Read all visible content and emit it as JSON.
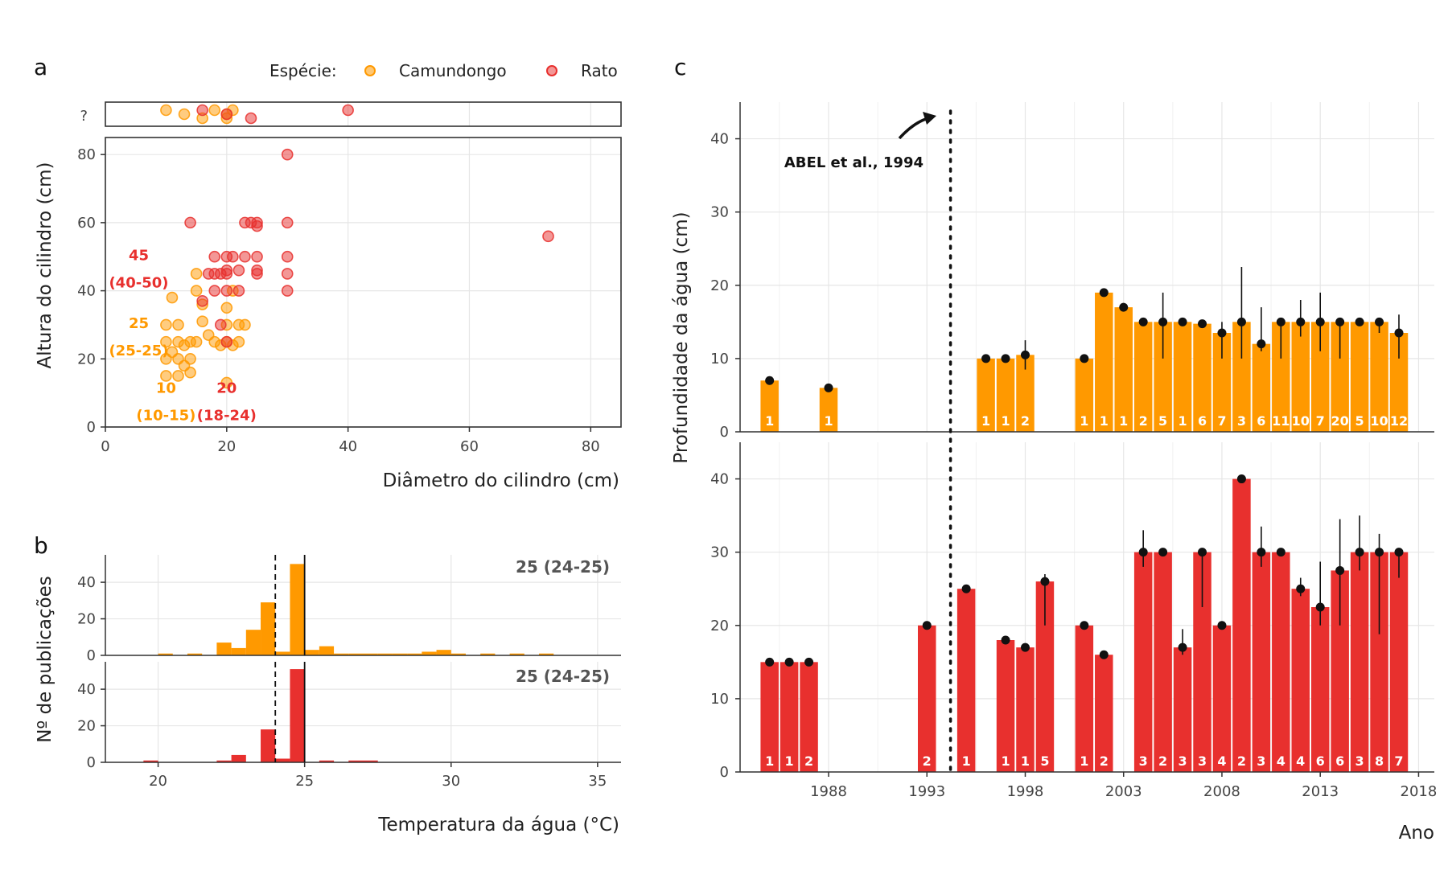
{
  "colors": {
    "camundongo": "#FF9900",
    "rato": "#E8302E",
    "point_black": "#111111"
  },
  "legend": {
    "title": "Espécie:",
    "items": [
      "Camundongo",
      "Rato"
    ]
  },
  "panels": {
    "a": {
      "letter": "a",
      "top_tick": "?",
      "xlabel": "Diâmetro do cilindro (cm)",
      "ylabel": "Altura do cilindro (cm)"
    },
    "b": {
      "letter": "b",
      "xlabel": "Temperatura da água (°C)",
      "ylabel": "Nº de publicações",
      "annotation_top": "25 (24-25)",
      "annotation_bottom": "25 (24-25)"
    },
    "c": {
      "letter": "c",
      "ylabel": "Profundidade da água (cm)",
      "xlabel": "Ano",
      "ref_label": "ABEL et al., 1994"
    }
  },
  "chart_data": [
    {
      "type": "scatter",
      "panel": "a",
      "xlabel": "Diâmetro do cilindro (cm)",
      "ylabel": "Altura do cilindro (cm)",
      "xlim": [
        0,
        85
      ],
      "ylim": [
        0,
        85
      ],
      "xticks": [
        0,
        20,
        40,
        60,
        80
      ],
      "yticks": [
        0,
        20,
        40,
        60,
        80
      ],
      "top_strip_label": "?",
      "series": [
        {
          "name": "Camundongo",
          "points": [
            [
              10,
              30
            ],
            [
              10,
              25
            ],
            [
              10,
              20
            ],
            [
              10,
              15
            ],
            [
              11,
              22
            ],
            [
              11,
              38
            ],
            [
              12,
              30
            ],
            [
              12,
              25
            ],
            [
              12,
              20
            ],
            [
              12,
              15
            ],
            [
              13,
              24
            ],
            [
              13,
              18
            ],
            [
              14,
              25
            ],
            [
              14,
              20
            ],
            [
              14,
              16
            ],
            [
              15,
              45
            ],
            [
              15,
              40
            ],
            [
              15,
              25
            ],
            [
              16,
              36
            ],
            [
              16,
              31
            ],
            [
              17,
              27
            ],
            [
              18,
              25
            ],
            [
              19,
              24
            ],
            [
              20,
              35
            ],
            [
              20,
              30
            ],
            [
              20,
              25
            ],
            [
              20,
              13
            ],
            [
              21,
              40
            ],
            [
              21,
              24
            ],
            [
              22,
              30
            ],
            [
              22,
              25
            ],
            [
              23,
              30
            ]
          ],
          "unknown_height_x": [
            10,
            13,
            16,
            18,
            20,
            20,
            21
          ]
        },
        {
          "name": "Rato",
          "points": [
            [
              14,
              60
            ],
            [
              16,
              37
            ],
            [
              17,
              45
            ],
            [
              18,
              50
            ],
            [
              18,
              45
            ],
            [
              18,
              40
            ],
            [
              19,
              30
            ],
            [
              19,
              45
            ],
            [
              20,
              50
            ],
            [
              20,
              46
            ],
            [
              20,
              45
            ],
            [
              20,
              40
            ],
            [
              20,
              25
            ],
            [
              21,
              50
            ],
            [
              22,
              46
            ],
            [
              22,
              40
            ],
            [
              23,
              60
            ],
            [
              23,
              50
            ],
            [
              24,
              60
            ],
            [
              25,
              60
            ],
            [
              25,
              59
            ],
            [
              25,
              50
            ],
            [
              25,
              46
            ],
            [
              25,
              45
            ],
            [
              30,
              80
            ],
            [
              30,
              60
            ],
            [
              30,
              50
            ],
            [
              30,
              45
            ],
            [
              30,
              40
            ],
            [
              73,
              56
            ]
          ],
          "unknown_height_x": [
            16,
            20,
            24,
            40
          ]
        }
      ],
      "annotations": [
        {
          "text": "45",
          "x": 5.5,
          "y": 49,
          "color": "rato"
        },
        {
          "text": "(40-50)",
          "x": 5.5,
          "y": 41,
          "color": "rato"
        },
        {
          "text": "25",
          "x": 5.5,
          "y": 29,
          "color": "camundongo"
        },
        {
          "text": "(25-25)",
          "x": 5.5,
          "y": 21,
          "color": "camundongo"
        },
        {
          "text": "10",
          "x": 10,
          "y": 10,
          "color": "camundongo"
        },
        {
          "text": "(10-15)",
          "x": 10,
          "y": 2,
          "color": "camundongo"
        },
        {
          "text": "20",
          "x": 20,
          "y": 10,
          "color": "rato"
        },
        {
          "text": "(18-24)",
          "x": 20,
          "y": 2,
          "color": "rato"
        }
      ]
    },
    {
      "type": "bar",
      "panel": "b",
      "xlabel": "Temperatura da água (°C)",
      "ylabel": "Nº de publicações",
      "xlim": [
        18.2,
        35.8
      ],
      "ylim": [
        0,
        55
      ],
      "xticks": [
        20,
        25,
        30,
        35
      ],
      "yticks": [
        0,
        20,
        40
      ],
      "bin_width": 0.5,
      "median": 25,
      "q1": 24,
      "series": [
        {
          "name": "Camundongo",
          "bins": [
            [
              20,
              1
            ],
            [
              21,
              1
            ],
            [
              22,
              7
            ],
            [
              22.5,
              4
            ],
            [
              23,
              14
            ],
            [
              23.5,
              29
            ],
            [
              24,
              2
            ],
            [
              24.5,
              50
            ],
            [
              25,
              3
            ],
            [
              25.5,
              5
            ],
            [
              26,
              1
            ],
            [
              26.5,
              1
            ],
            [
              27,
              1
            ],
            [
              27.5,
              1
            ],
            [
              28,
              1
            ],
            [
              28.5,
              1
            ],
            [
              29,
              2
            ],
            [
              29.5,
              3
            ],
            [
              30,
              1
            ],
            [
              31,
              1
            ],
            [
              32,
              1
            ],
            [
              33,
              1
            ]
          ]
        },
        {
          "name": "Rato",
          "bins": [
            [
              19.5,
              1
            ],
            [
              22,
              1
            ],
            [
              22.5,
              4
            ],
            [
              23.5,
              18
            ],
            [
              24,
              2
            ],
            [
              24.5,
              51
            ],
            [
              25.5,
              1
            ],
            [
              26.5,
              1
            ],
            [
              27,
              1
            ]
          ]
        }
      ]
    },
    {
      "type": "bar",
      "panel": "c",
      "xlabel": "Ano",
      "ylabel": "Profundidade da água (cm)",
      "xlim": [
        1983.5,
        2018.8
      ],
      "ylim": [
        0,
        45
      ],
      "xticks": [
        1988,
        1993,
        1998,
        2003,
        2008,
        2013,
        2018
      ],
      "yticks": [
        0,
        10,
        20,
        30,
        40
      ],
      "reference_year": 1994.2,
      "reference_label": "ABEL et al., 1994",
      "series": [
        {
          "name": "Camundongo",
          "bars": [
            {
              "year": 1985,
              "value": 7,
              "n": "1"
            },
            {
              "year": 1988,
              "value": 6,
              "n": "1"
            },
            {
              "year": 1996,
              "value": 10,
              "n": "1"
            },
            {
              "year": 1997,
              "value": 10,
              "n": "1"
            },
            {
              "year": 1998,
              "value": 10.5,
              "n": "2",
              "lo": 8.5,
              "hi": 12.5
            },
            {
              "year": 2001,
              "value": 10,
              "n": "1"
            },
            {
              "year": 2002,
              "value": 19,
              "n": "1"
            },
            {
              "year": 2003,
              "value": 17,
              "n": "1"
            },
            {
              "year": 2004,
              "value": 15,
              "n": "2"
            },
            {
              "year": 2005,
              "value": 15,
              "n": "5",
              "lo": 10,
              "hi": 19
            },
            {
              "year": 2006,
              "value": 15,
              "n": "1"
            },
            {
              "year": 2007,
              "value": 14.75,
              "n": "6",
              "lo": 14.5,
              "hi": 15
            },
            {
              "year": 2008,
              "value": 13.5,
              "n": "7",
              "lo": 10,
              "hi": 15
            },
            {
              "year": 2009,
              "value": 15,
              "n": "3",
              "lo": 10,
              "hi": 22.5
            },
            {
              "year": 2010,
              "value": 12,
              "n": "6",
              "lo": 11,
              "hi": 17
            },
            {
              "year": 2011,
              "value": 15,
              "n": "11",
              "lo": 10,
              "hi": 15
            },
            {
              "year": 2012,
              "value": 15,
              "n": "10",
              "lo": 13,
              "hi": 18
            },
            {
              "year": 2013,
              "value": 15,
              "n": "7",
              "lo": 11,
              "hi": 19
            },
            {
              "year": 2014,
              "value": 15,
              "n": "20",
              "lo": 10,
              "hi": 15
            },
            {
              "year": 2015,
              "value": 15,
              "n": "5"
            },
            {
              "year": 2016,
              "value": 15,
              "n": "10",
              "lo": 13.5,
              "hi": 15
            },
            {
              "year": 2017,
              "value": 13.5,
              "n": "12",
              "lo": 10,
              "hi": 16
            }
          ]
        },
        {
          "name": "Rato",
          "bars": [
            {
              "year": 1985,
              "value": 15,
              "n": "1"
            },
            {
              "year": 1986,
              "value": 15,
              "n": "1"
            },
            {
              "year": 1987,
              "value": 15,
              "n": "2"
            },
            {
              "year": 1993,
              "value": 20,
              "n": "2",
              "lo": 19.5,
              "hi": 20.5
            },
            {
              "year": 1995,
              "value": 25,
              "n": "1"
            },
            {
              "year": 1997,
              "value": 18,
              "n": "1"
            },
            {
              "year": 1998,
              "value": 17,
              "n": "1"
            },
            {
              "year": 1999,
              "value": 26,
              "n": "5",
              "lo": 20,
              "hi": 27
            },
            {
              "year": 2001,
              "value": 20,
              "n": "1"
            },
            {
              "year": 2002,
              "value": 16,
              "n": "2"
            },
            {
              "year": 2004,
              "value": 30,
              "n": "3",
              "lo": 28,
              "hi": 33
            },
            {
              "year": 2005,
              "value": 30,
              "n": "2"
            },
            {
              "year": 2006,
              "value": 17,
              "n": "3",
              "lo": 16,
              "hi": 19.5
            },
            {
              "year": 2007,
              "value": 30,
              "n": "3",
              "lo": 22.5,
              "hi": 30
            },
            {
              "year": 2008,
              "value": 20,
              "n": "4"
            },
            {
              "year": 2009,
              "value": 40,
              "n": "2"
            },
            {
              "year": 2010,
              "value": 30,
              "n": "3",
              "lo": 28,
              "hi": 33.5
            },
            {
              "year": 2011,
              "value": 30,
              "n": "4"
            },
            {
              "year": 2012,
              "value": 25,
              "n": "4",
              "lo": 24,
              "hi": 26.5
            },
            {
              "year": 2013,
              "value": 22.5,
              "n": "6",
              "lo": 20,
              "hi": 28.7
            },
            {
              "year": 2014,
              "value": 27.5,
              "n": "6",
              "lo": 20,
              "hi": 34.5
            },
            {
              "year": 2015,
              "value": 30,
              "n": "3",
              "lo": 27.5,
              "hi": 35
            },
            {
              "year": 2016,
              "value": 30,
              "n": "8",
              "lo": 18.8,
              "hi": 32.5
            },
            {
              "year": 2017,
              "value": 30,
              "n": "7",
              "lo": 26.5,
              "hi": 30
            }
          ]
        }
      ]
    }
  ]
}
